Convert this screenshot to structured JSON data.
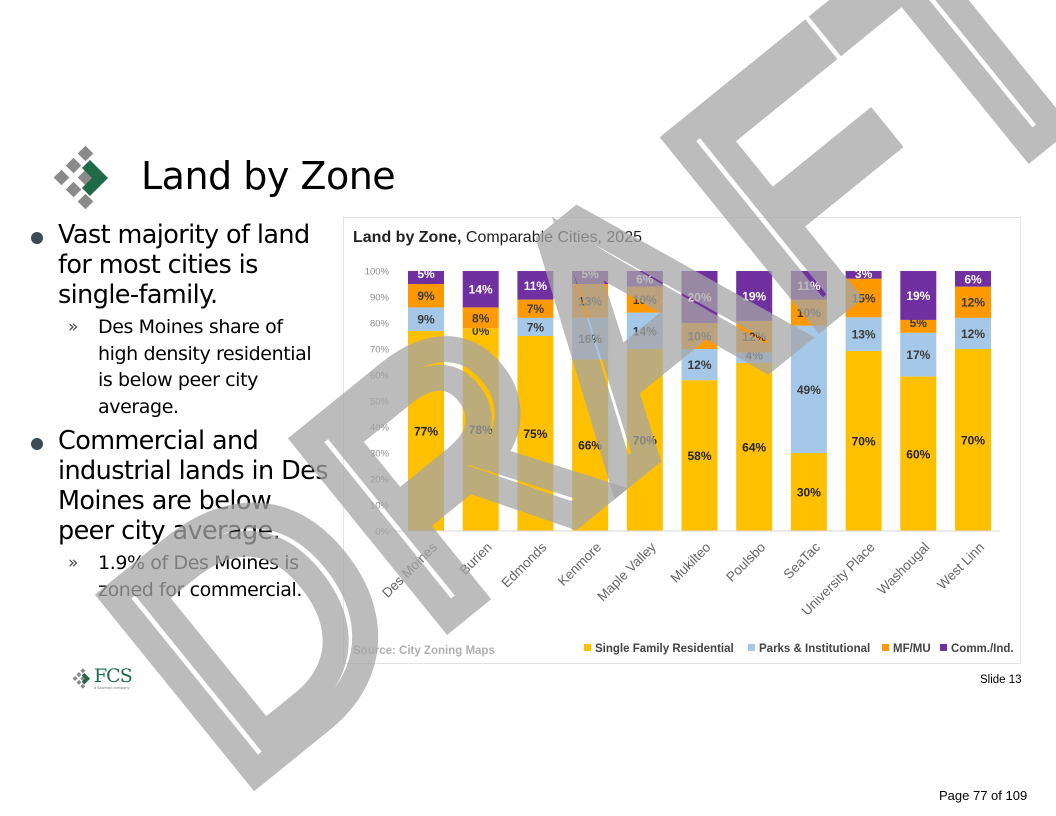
{
  "slide": {
    "title": "Land by Zone",
    "bullets": [
      {
        "text": "Vast majority of land for most cities is single-family.",
        "sub": [
          "Des Moines share of high density residential is below peer city average."
        ]
      },
      {
        "text": "Commercial and industrial lands in Des Moines are below peer city average.",
        "sub": [
          "1.9% of Des Moines is zoned for commercial."
        ]
      }
    ],
    "footer_logo": "FCS",
    "footer_logo_sub": "a Bowman company",
    "slide_label": "Slide 13",
    "page_label": "Page 77 of 109",
    "watermark": "DRAFT"
  },
  "colors": {
    "sfr": "#ffc000",
    "parks": "#a5c8e8",
    "mfmu": "#ff9900",
    "comm": "#7030a0",
    "logo_green": "#1f6b48",
    "logo_gray": "#8a8a8a",
    "watermark": "#a6a6a6"
  },
  "chart_data": {
    "type": "bar",
    "stacked": true,
    "title_bold": "Land by Zone,",
    "title_rest": " Comparable Cities, 2025",
    "source": "Source: City Zoning Maps",
    "categories": [
      "Des Moines",
      "Burien",
      "Edmonds",
      "Kenmore",
      "Maple Valley",
      "Mukilteo",
      "Poulsbo",
      "SeaTac",
      "University Place",
      "Washougal",
      "West Linn"
    ],
    "series": [
      {
        "name": "Single Family Residential",
        "color_key": "sfr",
        "values": [
          77,
          78,
          75,
          66,
          70,
          58,
          64,
          30,
          70,
          60,
          70
        ]
      },
      {
        "name": "Parks & Institutional",
        "color_key": "parks",
        "values": [
          9,
          0,
          7,
          16,
          14,
          12,
          4,
          49,
          13,
          17,
          12
        ]
      },
      {
        "name": "MF/MU",
        "color_key": "mfmu",
        "values": [
          9,
          8,
          7,
          13,
          10,
          10,
          12,
          10,
          15,
          5,
          12
        ]
      },
      {
        "name": "Comm./Ind.",
        "color_key": "comm",
        "values": [
          5,
          14,
          11,
          5,
          6,
          20,
          19,
          11,
          3,
          19,
          6
        ]
      }
    ],
    "ylim": [
      0,
      100
    ],
    "yticks": [
      "0%",
      "10%",
      "20%",
      "30%",
      "40%",
      "50%",
      "60%",
      "70%",
      "80%",
      "90%",
      "100%"
    ],
    "legend_position": "bottom-right",
    "grid": false
  }
}
